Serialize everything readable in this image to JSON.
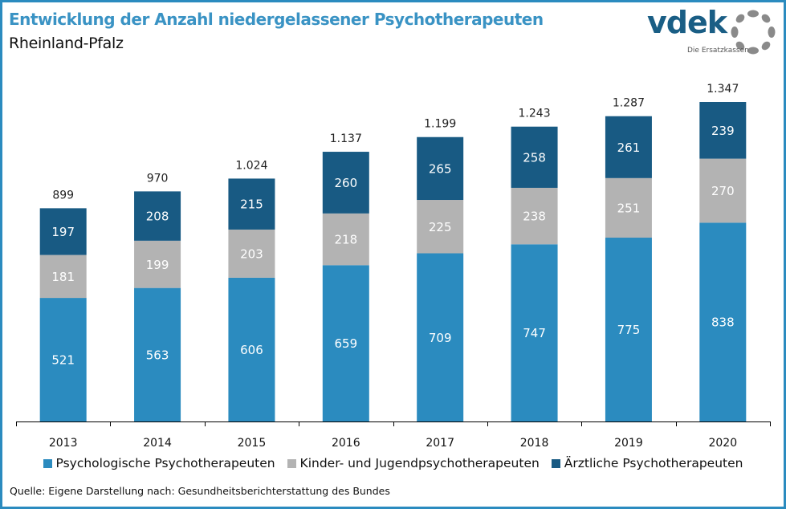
{
  "header": {
    "title": "Entwicklung der Anzahl niedergelassener Psychotherapeuten",
    "subtitle": "Rheinland-Pfalz"
  },
  "logo": {
    "text": "vdek",
    "tagline": "Die Ersatzkassen",
    "icon": "ring-of-dots-icon"
  },
  "source": "Quelle: Eigene Darstellung nach: Gesundheitsberichterstattung  des Bundes",
  "chart_data": {
    "type": "bar",
    "stacked": true,
    "title": "Entwicklung der Anzahl niedergelassener Psychotherapeuten",
    "subtitle": "Rheinland-Pfalz",
    "xlabel": "",
    "ylabel": "",
    "ylim": [
      0,
      1347
    ],
    "grid": false,
    "legend_position": "bottom",
    "categories": [
      "2013",
      "2014",
      "2015",
      "2016",
      "2017",
      "2018",
      "2019",
      "2020"
    ],
    "series": [
      {
        "name": "Psychologische Psychotherapeuten",
        "color": "#2b8bbf",
        "values": [
          521,
          563,
          606,
          659,
          709,
          747,
          775,
          838
        ]
      },
      {
        "name": "Kinder- und Jugendpsychotherapeuten",
        "color": "#b3b3b3",
        "values": [
          181,
          199,
          203,
          218,
          225,
          238,
          251,
          270
        ]
      },
      {
        "name": "Ärztliche Psychotherapeuten",
        "color": "#185a83",
        "values": [
          197,
          208,
          215,
          260,
          265,
          258,
          261,
          239
        ]
      }
    ],
    "totals": [
      899,
      970,
      1024,
      1137,
      1199,
      1243,
      1287,
      1347
    ],
    "total_labels": [
      "899",
      "970",
      "1.024",
      "1.137",
      "1.199",
      "1.243",
      "1.287",
      "1.347"
    ]
  }
}
